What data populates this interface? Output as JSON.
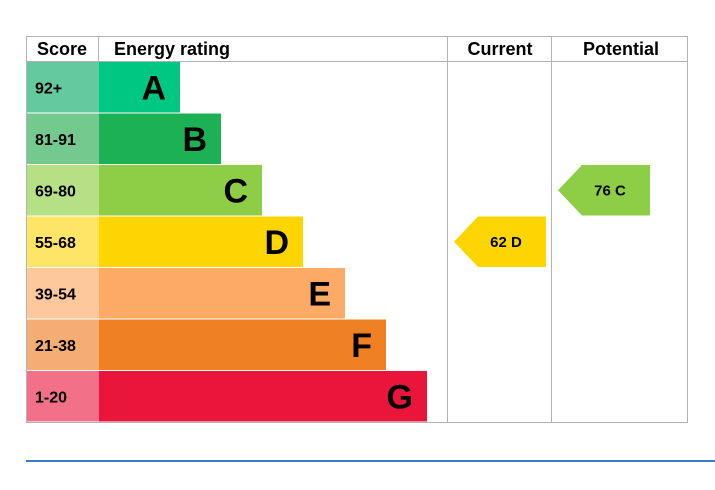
{
  "header": {
    "score": "Score",
    "energy_rating": "Energy rating",
    "current": "Current",
    "potential": "Potential"
  },
  "chart_data": {
    "type": "bar",
    "bands": [
      {
        "range": "92+",
        "letter": "A",
        "color": "#00c781",
        "score_bg": "#65c9a0"
      },
      {
        "range": "81-91",
        "letter": "B",
        "color": "#1db156",
        "score_bg": "#74c98f"
      },
      {
        "range": "69-80",
        "letter": "C",
        "color": "#8dce46",
        "score_bg": "#b5e086"
      },
      {
        "range": "55-68",
        "letter": "D",
        "color": "#ffd500",
        "score_bg": "#ffe566"
      },
      {
        "range": "39-54",
        "letter": "E",
        "color": "#fcaa65",
        "score_bg": "#fdc89c"
      },
      {
        "range": "21-38",
        "letter": "F",
        "color": "#ef8023",
        "score_bg": "#f4ad72"
      },
      {
        "range": "1-20",
        "letter": "G",
        "color": "#e9153b",
        "score_bg": "#f27189"
      }
    ],
    "current": {
      "value": 62,
      "letter": "D",
      "label": "62  D",
      "color": "#ffd500"
    },
    "potential": {
      "value": 76,
      "letter": "C",
      "label": "76  C",
      "color": "#8dce46"
    }
  }
}
